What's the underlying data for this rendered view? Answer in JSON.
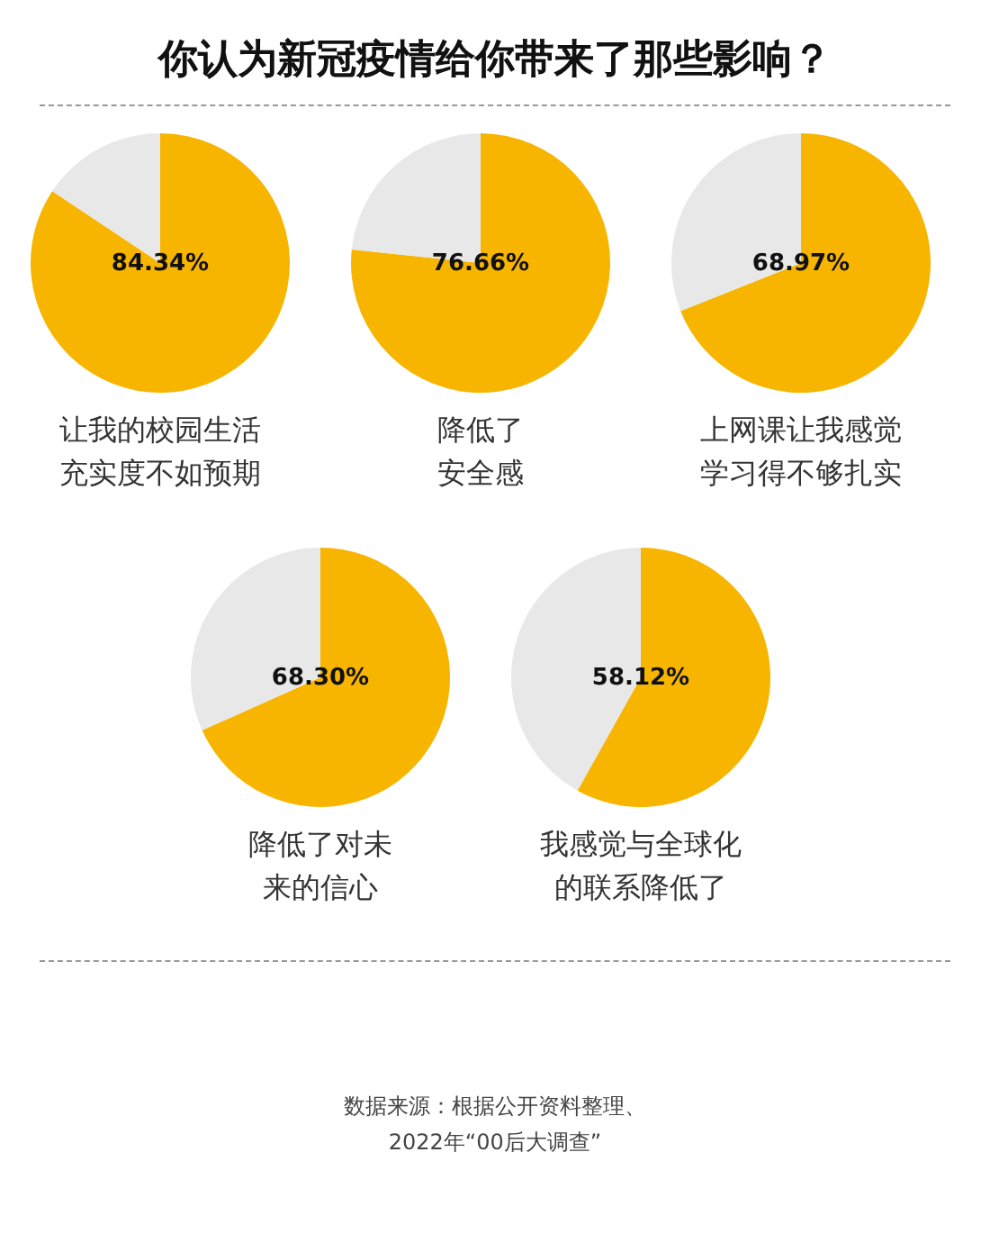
{
  "chart_data": [
    {
      "type": "pie",
      "title": "你认为新冠疫情给你带来了那些影响？",
      "categories": [
        "让我的校园生活充实度不如预期",
        null
      ],
      "values": [
        84.34,
        15.66
      ],
      "colors": [
        "#f7b500",
        "#e8e8e8"
      ],
      "value_labels": [
        "84.34%",
        null
      ],
      "legend": false
    },
    {
      "type": "pie",
      "categories": [
        "降低了安全感",
        null
      ],
      "values": [
        76.66,
        23.34
      ],
      "colors": [
        "#f7b500",
        "#e8e8e8"
      ],
      "value_labels": [
        "76.66%",
        null
      ],
      "legend": false
    },
    {
      "type": "pie",
      "categories": [
        "上网课让我感觉学习得不够扎实",
        null
      ],
      "values": [
        68.97,
        31.03
      ],
      "colors": [
        "#f7b500",
        "#e8e8e8"
      ],
      "value_labels": [
        "68.97%",
        null
      ],
      "legend": false
    },
    {
      "type": "pie",
      "categories": [
        "降低了对未来的信心",
        null
      ],
      "values": [
        68.3,
        31.7
      ],
      "colors": [
        "#f7b500",
        "#e8e8e8"
      ],
      "value_labels": [
        "68.30%",
        null
      ],
      "legend": false
    },
    {
      "type": "pie",
      "categories": [
        "我感觉与全球化的联系降低了",
        null
      ],
      "values": [
        58.12,
        41.88
      ],
      "colors": [
        "#f7b500",
        "#e8e8e8"
      ],
      "value_labels": [
        "58.12%",
        null
      ],
      "legend": false,
      "annotations": [
        "数据来源：根据公开资料整理、\n2022年“00后大调查”"
      ]
    }
  ]
}
